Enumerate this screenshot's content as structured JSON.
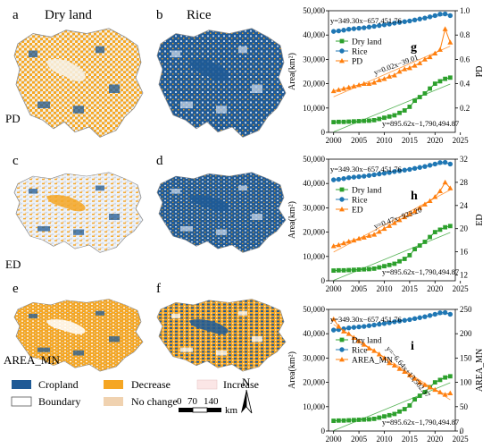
{
  "panels": {
    "a": {
      "letter": "a",
      "title": "Dry land"
    },
    "b": {
      "letter": "b",
      "title": "Rice"
    },
    "c": {
      "letter": "c"
    },
    "d": {
      "letter": "d"
    },
    "e": {
      "letter": "e"
    },
    "f": {
      "letter": "f"
    },
    "g": {
      "letter": "g"
    },
    "h": {
      "letter": "h"
    },
    "i": {
      "letter": "i"
    }
  },
  "row_labels": [
    "PD",
    "ED",
    "AREA_MN"
  ],
  "legend": {
    "cropland": "Cropland",
    "decrease": "Decrease",
    "increase": "Increase",
    "boundary": "Boundary",
    "no_change": "No change"
  },
  "scale_bar": {
    "ticks": [
      "0",
      "70",
      "140"
    ],
    "unit": "km"
  },
  "north": "N",
  "colors": {
    "cropland": "#1f5a96",
    "decrease": "#f5a623",
    "increase": "#fbe6e6",
    "no_change": "#f0d2b0",
    "boundary": "#ffffff",
    "light_blue": "#c7d7ea",
    "dry_line": "#2ca02c",
    "rice_line": "#1f77b4",
    "metric_line": "#ff7f0e"
  },
  "chart_data": [
    {
      "type": "line",
      "panel": "g",
      "xlim": [
        1999,
        2024
      ],
      "xticks": [
        "2000",
        "2005",
        "2010",
        "2015",
        "2020",
        "2025"
      ],
      "ylabel": "Area(km²)",
      "ylim": [
        0,
        50000
      ],
      "yticks": [
        "0",
        "10,000",
        "20,000",
        "30,000",
        "40,000",
        "50,000"
      ],
      "y2label": "PD",
      "y2lim": [
        0,
        1.0
      ],
      "y2ticks": [
        "0.2",
        "0.4",
        "0.6",
        "0.8",
        "1.0"
      ],
      "x": [
        2000,
        2001,
        2002,
        2003,
        2004,
        2005,
        2006,
        2007,
        2008,
        2009,
        2010,
        2011,
        2012,
        2013,
        2014,
        2015,
        2016,
        2017,
        2018,
        2019,
        2020,
        2021,
        2022,
        2023
      ],
      "series": [
        {
          "name": "Dry land",
          "axis": "left",
          "marker": "square",
          "color": "#2ca02c",
          "values": [
            4200,
            4300,
            4300,
            4400,
            4500,
            4600,
            4700,
            4800,
            5000,
            5500,
            6000,
            6500,
            7000,
            8000,
            9000,
            10500,
            13000,
            14500,
            16000,
            18000,
            20000,
            21000,
            22000,
            22500
          ]
        },
        {
          "name": "Rice",
          "axis": "left",
          "marker": "circle",
          "color": "#1f77b4",
          "values": [
            41500,
            41700,
            42000,
            42400,
            42600,
            42800,
            43000,
            43300,
            43600,
            43900,
            44200,
            44500,
            44900,
            45200,
            45500,
            45800,
            46200,
            46600,
            47000,
            47500,
            48000,
            48600,
            48700,
            48000
          ]
        },
        {
          "name": "PD",
          "axis": "right",
          "marker": "triangle",
          "color": "#ff7f0e",
          "values": [
            0.34,
            0.35,
            0.36,
            0.37,
            0.38,
            0.39,
            0.4,
            0.4,
            0.41,
            0.43,
            0.44,
            0.46,
            0.47,
            0.5,
            0.52,
            0.53,
            0.55,
            0.57,
            0.6,
            0.62,
            0.65,
            0.68,
            0.85,
            0.74
          ]
        }
      ],
      "equations": [
        "y=349.30x−657,451.76",
        "y=0.02x−39.01",
        "y=895.62x−1,790,494.87"
      ]
    },
    {
      "type": "line",
      "panel": "h",
      "xlim": [
        1999,
        2024
      ],
      "xticks": [
        "2000",
        "2005",
        "2010",
        "2015",
        "2020",
        "2025"
      ],
      "ylabel": "Area(km²)",
      "ylim": [
        0,
        50000
      ],
      "yticks": [
        "0",
        "10,000",
        "20,000",
        "30,000",
        "40,000",
        "50,000"
      ],
      "y2label": "ED",
      "y2lim": [
        11,
        32
      ],
      "y2ticks": [
        "12",
        "16",
        "20",
        "24",
        "28",
        "32"
      ],
      "x": [
        2000,
        2001,
        2002,
        2003,
        2004,
        2005,
        2006,
        2007,
        2008,
        2009,
        2010,
        2011,
        2012,
        2013,
        2014,
        2015,
        2016,
        2017,
        2018,
        2019,
        2020,
        2021,
        2022,
        2023
      ],
      "series": [
        {
          "name": "Dry land",
          "axis": "left",
          "marker": "square",
          "color": "#2ca02c",
          "values": [
            4200,
            4300,
            4300,
            4400,
            4500,
            4600,
            4700,
            4800,
            5000,
            5500,
            6000,
            6500,
            7000,
            8000,
            9000,
            10500,
            13000,
            14500,
            16000,
            18000,
            20000,
            21000,
            22000,
            22500
          ]
        },
        {
          "name": "Rice",
          "axis": "left",
          "marker": "circle",
          "color": "#1f77b4",
          "values": [
            41500,
            41700,
            42000,
            42400,
            42600,
            42800,
            43000,
            43300,
            43600,
            43900,
            44200,
            44500,
            44900,
            45200,
            45500,
            45800,
            46200,
            46600,
            47000,
            47500,
            48000,
            48600,
            48700,
            48000
          ]
        },
        {
          "name": "ED",
          "axis": "right",
          "marker": "triangle",
          "color": "#ff7f0e",
          "values": [
            17.0,
            17.2,
            17.5,
            17.8,
            18.0,
            18.3,
            18.5,
            18.8,
            19.0,
            19.5,
            20.0,
            20.5,
            21.0,
            21.5,
            22.0,
            22.5,
            23.0,
            23.6,
            24.2,
            24.8,
            25.5,
            26.5,
            28.0,
            27.0
          ]
        }
      ],
      "equations": [
        "y=349.30x−657,451.76",
        "y=0.47x−923.20",
        "y=895.62x−1,790,494.87"
      ]
    },
    {
      "type": "line",
      "panel": "i",
      "xlim": [
        1999,
        2024
      ],
      "xticks": [
        "2000",
        "2005",
        "2010",
        "2015",
        "2020",
        "2025"
      ],
      "ylabel": "Area(km²)",
      "ylim": [
        0,
        50000
      ],
      "yticks": [
        "0",
        "10,000",
        "20,000",
        "30,000",
        "40,000",
        "50,000"
      ],
      "y2label": "AREA_MN",
      "y2lim": [
        0,
        250
      ],
      "y2ticks": [
        "0",
        "50",
        "100",
        "150",
        "200",
        "250"
      ],
      "x": [
        2000,
        2001,
        2002,
        2003,
        2004,
        2005,
        2006,
        2007,
        2008,
        2009,
        2010,
        2011,
        2012,
        2013,
        2014,
        2015,
        2016,
        2017,
        2018,
        2019,
        2020,
        2021,
        2022,
        2023
      ],
      "series": [
        {
          "name": "Dry land",
          "axis": "left",
          "marker": "square",
          "color": "#2ca02c",
          "values": [
            4200,
            4300,
            4300,
            4400,
            4500,
            4600,
            4700,
            4800,
            5000,
            5500,
            6000,
            6500,
            7000,
            8000,
            9000,
            10500,
            13000,
            14500,
            16000,
            18000,
            20000,
            21000,
            22000,
            22500
          ]
        },
        {
          "name": "Rice",
          "axis": "left",
          "marker": "circle",
          "color": "#1f77b4",
          "values": [
            41500,
            41700,
            42000,
            42400,
            42600,
            42800,
            43000,
            43300,
            43600,
            43900,
            44200,
            44500,
            44900,
            45200,
            45500,
            45800,
            46200,
            46600,
            47000,
            47500,
            48000,
            48600,
            48700,
            48000
          ]
        },
        {
          "name": "AREA_MN",
          "axis": "right",
          "marker": "triangle",
          "color": "#ff7f0e",
          "values": [
            230,
            215,
            205,
            200,
            192,
            185,
            178,
            170,
            165,
            158,
            150,
            140,
            135,
            128,
            122,
            115,
            108,
            100,
            95,
            90,
            85,
            80,
            75,
            78
          ]
        }
      ],
      "equations": [
        "y=349.30x−657,451.76",
        "y=−6.64x+13,502.37",
        "y=895.62x−1,790,494.87"
      ]
    }
  ]
}
